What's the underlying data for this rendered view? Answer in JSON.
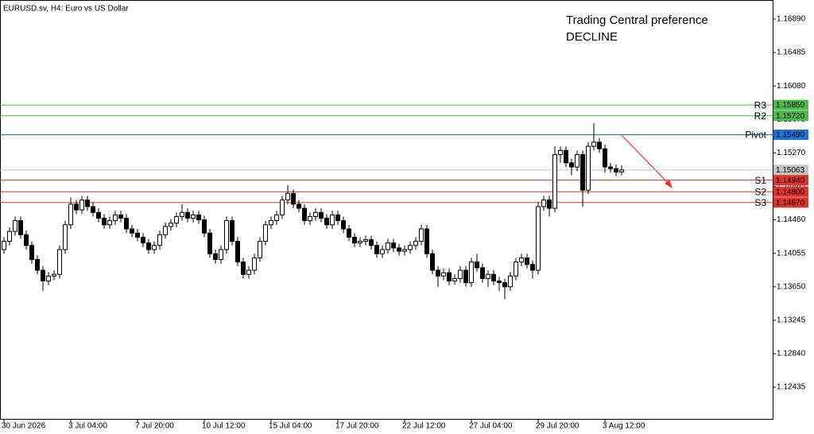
{
  "chart_data": {
    "type": "candlestick",
    "title": "EURUSD.sv, H4:  Euro vs US Dollar",
    "annotations": [
      "Trading Central preference",
      "DECLINE"
    ],
    "categories": [
      "30 Jun 2026",
      null,
      null,
      null,
      null,
      null,
      null,
      null,
      null,
      null,
      null,
      null,
      "3 Jul 04:00",
      null,
      null,
      null,
      null,
      null,
      null,
      null,
      null,
      null,
      null,
      null,
      "7 Jul 20:00",
      null,
      null,
      null,
      null,
      null,
      null,
      null,
      null,
      null,
      null,
      null,
      "10 Jul 12:00",
      null,
      null,
      null,
      null,
      null,
      null,
      null,
      null,
      null,
      null,
      null,
      "15 Jul 04:00",
      null,
      null,
      null,
      null,
      null,
      null,
      null,
      null,
      null,
      null,
      null,
      "17 Jul 20:00",
      null,
      null,
      null,
      null,
      null,
      null,
      null,
      null,
      null,
      null,
      null,
      "22 Jul 12:00",
      null,
      null,
      null,
      null,
      null,
      null,
      null,
      null,
      null,
      null,
      null,
      "27 Jul 04:00",
      null,
      null,
      null,
      null,
      null,
      null,
      null,
      null,
      null,
      null,
      null,
      "29 Jul 20:00",
      null,
      null,
      null,
      null,
      null,
      null,
      null,
      null,
      null,
      null,
      null,
      "3 Aug 12:00",
      null,
      null,
      null
    ],
    "open": [
      1.141,
      1.142,
      1.1432,
      1.1445,
      1.1428,
      1.1415,
      1.1398,
      1.1385,
      1.1372,
      1.1378,
      1.138,
      1.141,
      1.144,
      1.1465,
      1.1458,
      1.147,
      1.1462,
      1.1455,
      1.1448,
      1.144,
      1.1445,
      1.1452,
      1.1448,
      1.1435,
      1.143,
      1.1425,
      1.1418,
      1.141,
      1.1415,
      1.1428,
      1.1438,
      1.1442,
      1.145,
      1.1455,
      1.1448,
      1.1452,
      1.1446,
      1.143,
      1.1405,
      1.1398,
      1.141,
      1.1445,
      1.142,
      1.1395,
      1.138,
      1.1385,
      1.14,
      1.142,
      1.144,
      1.1445,
      1.1452,
      1.147,
      1.1478,
      1.1465,
      1.146,
      1.1445,
      1.145,
      1.1455,
      1.1448,
      1.144,
      1.1452,
      1.1445,
      1.1435,
      1.1425,
      1.1418,
      1.142,
      1.1422,
      1.1415,
      1.1405,
      1.141,
      1.1418,
      1.1412,
      1.1408,
      1.141,
      1.1415,
      1.142,
      1.1435,
      1.1405,
      1.1385,
      1.1378,
      1.1382,
      1.1372,
      1.1375,
      1.1385,
      1.137,
      1.1395,
      1.1388,
      1.1375,
      1.138,
      1.1372,
      1.137,
      1.1365,
      1.1378,
      1.1395,
      1.14,
      1.1392,
      1.1385,
      1.1462,
      1.147,
      1.146,
      1.1525,
      1.153,
      1.1515,
      1.151,
      1.1525,
      1.1482,
      1.1535,
      1.154,
      1.1532,
      1.151,
      1.1508,
      1.1504
    ],
    "high": [
      1.1425,
      1.1437,
      1.145,
      1.145,
      1.1433,
      1.142,
      1.1403,
      1.139,
      1.1383,
      1.1385,
      1.1415,
      1.1445,
      1.1473,
      1.147,
      1.1475,
      1.1475,
      1.1467,
      1.146,
      1.1453,
      1.145,
      1.1457,
      1.1457,
      1.1453,
      1.144,
      1.1435,
      1.143,
      1.1423,
      1.142,
      1.1433,
      1.1443,
      1.1447,
      1.1455,
      1.1465,
      1.146,
      1.1457,
      1.1457,
      1.1451,
      1.1435,
      1.141,
      1.1415,
      1.145,
      1.145,
      1.1425,
      1.14,
      1.139,
      1.1405,
      1.1425,
      1.1445,
      1.145,
      1.1457,
      1.1475,
      1.1488,
      1.1483,
      1.147,
      1.1465,
      1.1455,
      1.146,
      1.146,
      1.1453,
      1.1457,
      1.1457,
      1.145,
      1.144,
      1.143,
      1.1425,
      1.1427,
      1.1427,
      1.142,
      1.1415,
      1.1423,
      1.1423,
      1.1417,
      1.1415,
      1.142,
      1.1425,
      1.144,
      1.144,
      1.141,
      1.139,
      1.1387,
      1.1387,
      1.138,
      1.139,
      1.139,
      1.14,
      1.1405,
      1.1393,
      1.1385,
      1.1385,
      1.1377,
      1.1375,
      1.1383,
      1.14,
      1.1405,
      1.1405,
      1.1397,
      1.1467,
      1.1475,
      1.1475,
      1.1535,
      1.1535,
      1.1535,
      1.152,
      1.153,
      1.153,
      1.154,
      1.1563,
      1.1545,
      1.1537,
      1.1515,
      1.1513,
      1.1512
    ],
    "low": [
      1.1405,
      1.1415,
      1.1427,
      1.1423,
      1.141,
      1.1393,
      1.138,
      1.136,
      1.1367,
      1.1373,
      1.1375,
      1.1405,
      1.1435,
      1.1453,
      1.1453,
      1.1457,
      1.145,
      1.1443,
      1.1435,
      1.1435,
      1.144,
      1.1443,
      1.143,
      1.1425,
      1.142,
      1.1413,
      1.1405,
      1.1405,
      1.141,
      1.1423,
      1.1433,
      1.1437,
      1.1445,
      1.1443,
      1.1443,
      1.1441,
      1.1425,
      1.14,
      1.1393,
      1.1393,
      1.1405,
      1.1415,
      1.139,
      1.1375,
      1.1375,
      1.138,
      1.1395,
      1.1415,
      1.1435,
      1.144,
      1.1447,
      1.1465,
      1.146,
      1.1455,
      1.144,
      1.144,
      1.1445,
      1.1443,
      1.1435,
      1.1435,
      1.144,
      1.143,
      1.142,
      1.1413,
      1.1413,
      1.1415,
      1.141,
      1.14,
      1.14,
      1.1405,
      1.1407,
      1.1403,
      1.1403,
      1.1405,
      1.141,
      1.1415,
      1.14,
      1.138,
      1.1365,
      1.1373,
      1.1367,
      1.1367,
      1.137,
      1.1365,
      1.1365,
      1.1383,
      1.137,
      1.1365,
      1.1367,
      1.136,
      1.135,
      1.136,
      1.1373,
      1.139,
      1.1387,
      1.1375,
      1.138,
      1.1457,
      1.145,
      1.1455,
      1.1515,
      1.151,
      1.15,
      1.1505,
      1.1462,
      1.1477,
      1.153,
      1.1527,
      1.1503,
      1.1503,
      1.1499,
      1.15
    ],
    "close": [
      1.142,
      1.1432,
      1.1445,
      1.1428,
      1.1415,
      1.1398,
      1.1385,
      1.1372,
      1.1378,
      1.138,
      1.141,
      1.144,
      1.1465,
      1.1458,
      1.147,
      1.1462,
      1.1455,
      1.1448,
      1.144,
      1.1445,
      1.1452,
      1.1448,
      1.1435,
      1.143,
      1.1425,
      1.1418,
      1.141,
      1.1415,
      1.1428,
      1.1438,
      1.1442,
      1.145,
      1.1455,
      1.1448,
      1.1452,
      1.1446,
      1.143,
      1.1405,
      1.1398,
      1.141,
      1.1445,
      1.142,
      1.1395,
      1.138,
      1.1385,
      1.14,
      1.142,
      1.144,
      1.1445,
      1.1452,
      1.147,
      1.1478,
      1.1465,
      1.146,
      1.1445,
      1.145,
      1.1455,
      1.1448,
      1.144,
      1.1452,
      1.1445,
      1.1435,
      1.1425,
      1.1418,
      1.142,
      1.1422,
      1.1415,
      1.1405,
      1.141,
      1.1418,
      1.1412,
      1.1408,
      1.141,
      1.1415,
      1.142,
      1.1435,
      1.1405,
      1.1385,
      1.1378,
      1.1382,
      1.1372,
      1.1375,
      1.1385,
      1.137,
      1.1395,
      1.1388,
      1.1375,
      1.138,
      1.1372,
      1.137,
      1.1365,
      1.1378,
      1.1395,
      1.14,
      1.1392,
      1.1385,
      1.1462,
      1.147,
      1.146,
      1.1525,
      1.153,
      1.1515,
      1.151,
      1.1525,
      1.1482,
      1.1535,
      1.154,
      1.1532,
      1.151,
      1.1508,
      1.1504,
      1.15063
    ],
    "ylim": [
      1.12041,
      1.17121
    ],
    "yticks": [
      {
        "value": 1.1689,
        "label": "1.16890"
      },
      {
        "value": 1.16485,
        "label": "1.16485"
      },
      {
        "value": 1.1608,
        "label": "1.16080"
      },
      {
        "value": 1.15675,
        "label": "1.15675"
      },
      {
        "value": 1.1527,
        "label": "1.15270"
      },
      {
        "value": 1.14865,
        "label": "1.14865"
      },
      {
        "value": 1.1446,
        "label": "1.14460"
      },
      {
        "value": 1.14055,
        "label": "1.14055"
      },
      {
        "value": 1.1365,
        "label": "1.13650"
      },
      {
        "value": 1.13245,
        "label": "1.13245"
      },
      {
        "value": 1.1284,
        "label": "1.12840"
      },
      {
        "value": 1.12435,
        "label": "1.12435"
      }
    ],
    "levels": [
      {
        "name": "R3",
        "value": 1.1585,
        "label": "1.15850",
        "color": "#4cbb4c"
      },
      {
        "name": "R2",
        "value": 1.1572,
        "label": "1.15720",
        "color": "#4cbb4c"
      },
      {
        "name": "Pivot",
        "value": 1.1549,
        "label": "1.15490",
        "color": "#1f72d8"
      },
      {
        "name": "S1",
        "value": 1.1494,
        "label": "1.14940",
        "color": "#e0312b"
      },
      {
        "name": "S2",
        "value": 1.148,
        "label": "1.14800",
        "color": "#e0312b"
      },
      {
        "name": "S3",
        "value": 1.1467,
        "label": "1.14670",
        "color": "#e0312b"
      }
    ],
    "current_price": 1.15063,
    "current_price_color": "#c4c4c4",
    "annotation_color": "#e8312a"
  }
}
